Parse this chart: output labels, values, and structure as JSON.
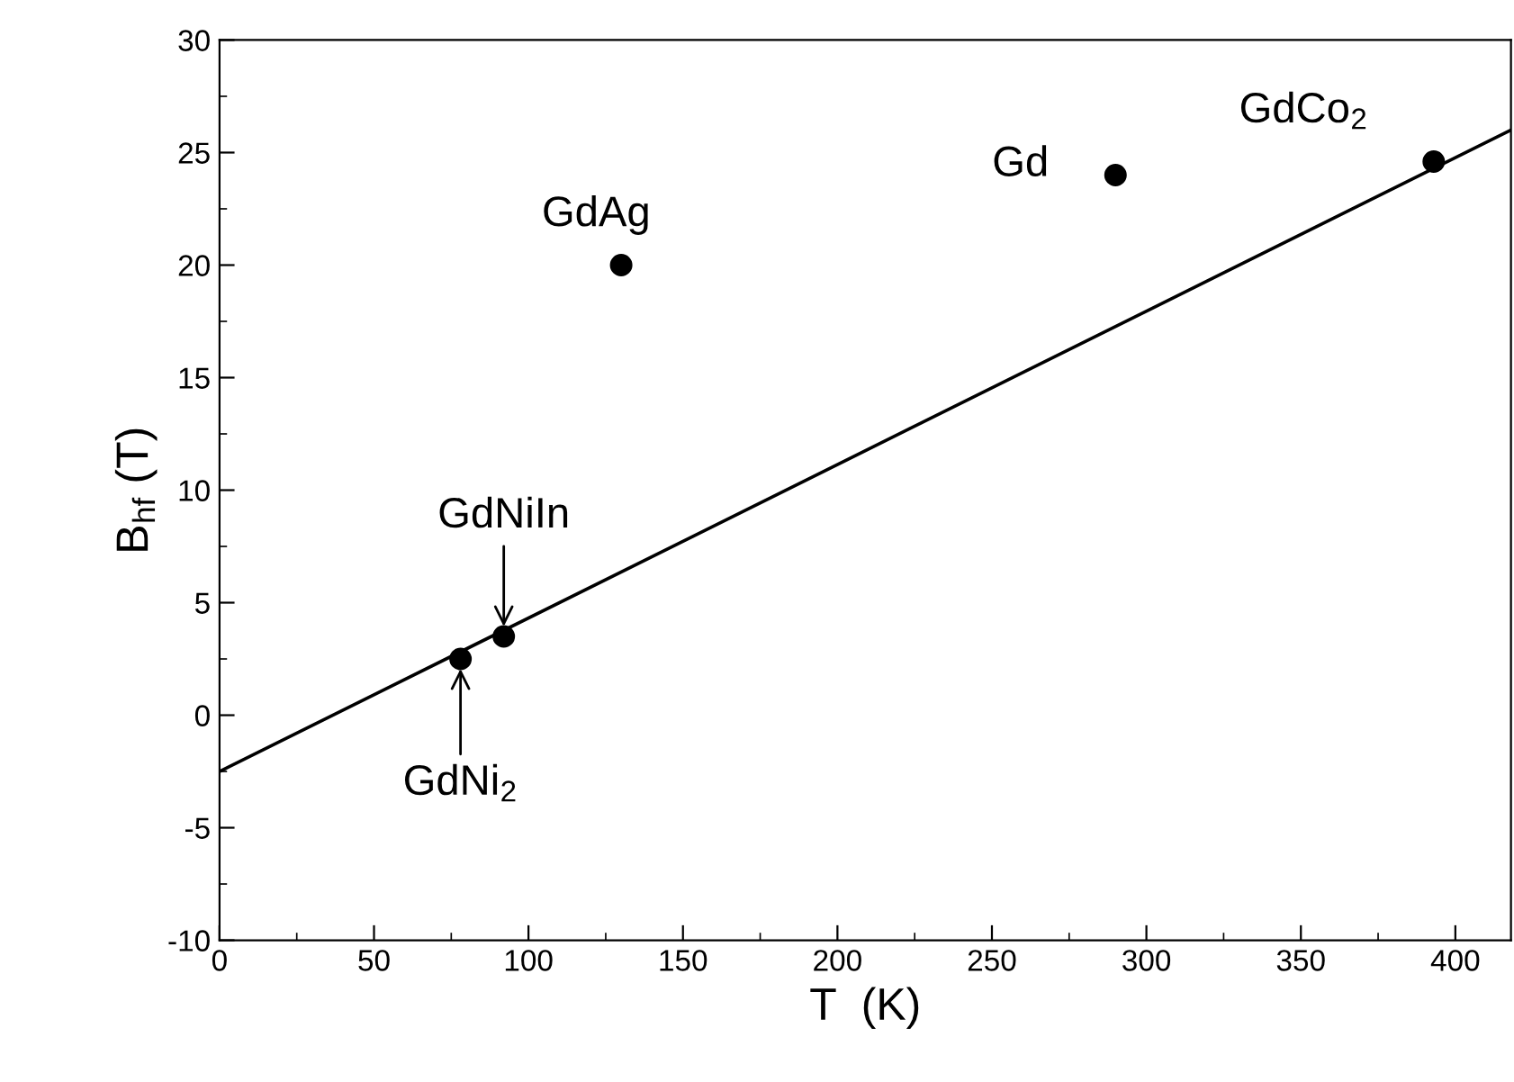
{
  "chart_data": {
    "type": "scatter",
    "xlabel": "T  (K)",
    "ylabel": "B$_{hf}$ (T)",
    "xlim": [
      0,
      418
    ],
    "ylim": [
      -10,
      30
    ],
    "xticks": [
      0,
      50,
      100,
      150,
      200,
      250,
      300,
      350,
      400
    ],
    "yticks": [
      -10,
      -5,
      0,
      5,
      10,
      15,
      20,
      25,
      30
    ],
    "grid": false,
    "legend": false,
    "marker": "circle",
    "series": [
      {
        "color": "#000000",
        "x": [
          78,
          92,
          130,
          290,
          393
        ],
        "values": [
          2.5,
          3.5,
          20,
          24,
          24.6
        ]
      },
      {
        "type": "line",
        "color": "#000000",
        "marker": "none",
        "line_style": "solid",
        "x": [
          0,
          418
        ],
        "values": [
          -2.5,
          26
        ]
      }
    ],
    "annotations": [
      {
        "text": "GdNi$_{2}$",
        "x": 78,
        "y": 2.5
      },
      {
        "text": "GdNiIn",
        "x": 92,
        "y": 3.5
      },
      {
        "text": "GdAg",
        "x": 130,
        "y": 20
      },
      {
        "text": "Gd",
        "x": 290,
        "y": 24
      },
      {
        "text": "GdCo$_{2}$",
        "x": 393,
        "y": 24.6
      }
    ]
  }
}
